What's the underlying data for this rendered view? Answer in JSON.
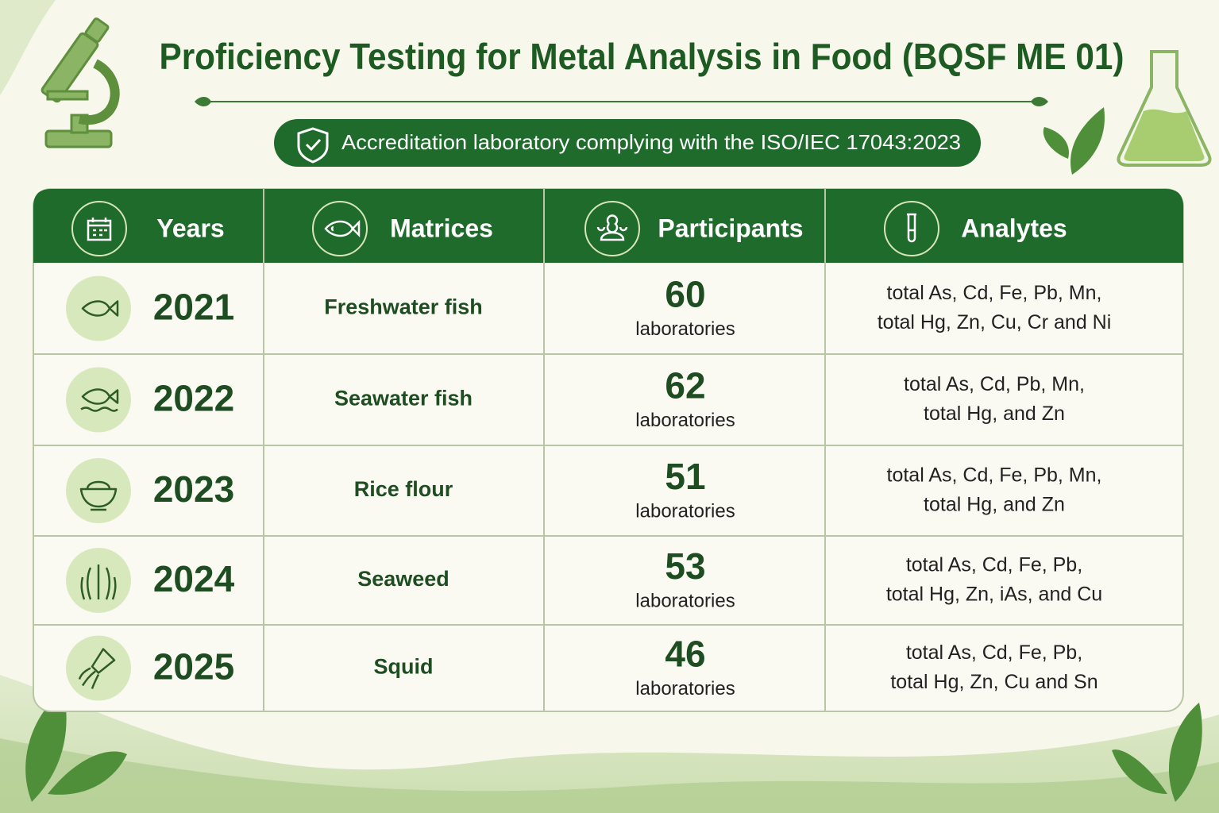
{
  "header": {
    "title": "Proficiency Testing for Metal Analysis in Food (BQSF ME 01)",
    "badge": "Accreditation laboratory complying with the ISO/IEC 17043:2023"
  },
  "table": {
    "columns": [
      "Years",
      "Matrices",
      "Participants",
      "Analytes"
    ],
    "rows": [
      {
        "year": "2021",
        "matrix": "Freshwater fish",
        "participants": 60,
        "unit": "laboratories",
        "analytes": [
          "total As, Cd, Fe, Pb, Mn,",
          "total Hg, Zn, Cu, Cr and Ni"
        ]
      },
      {
        "year": "2022",
        "matrix": "Seawater fish",
        "participants": 62,
        "unit": "laboratories",
        "analytes": [
          "total As, Cd, Pb, Mn,",
          "total Hg, and Zn"
        ]
      },
      {
        "year": "2023",
        "matrix": "Rice flour",
        "participants": 51,
        "unit": "laboratories",
        "analytes": [
          "total As, Cd, Fe, Pb, Mn,",
          "total Hg, and Zn"
        ]
      },
      {
        "year": "2024",
        "matrix": "Seaweed",
        "participants": 53,
        "unit": "laboratories",
        "analytes": [
          "total As, Cd, Fe, Pb,",
          "total Hg, Zn, iAs, and Cu"
        ]
      },
      {
        "year": "2025",
        "matrix": "Squid",
        "participants": 46,
        "unit": "laboratories",
        "analytes": [
          "total As, Cd, Fe, Pb,",
          "total Hg, Zn, Cu and Sn"
        ]
      }
    ]
  }
}
